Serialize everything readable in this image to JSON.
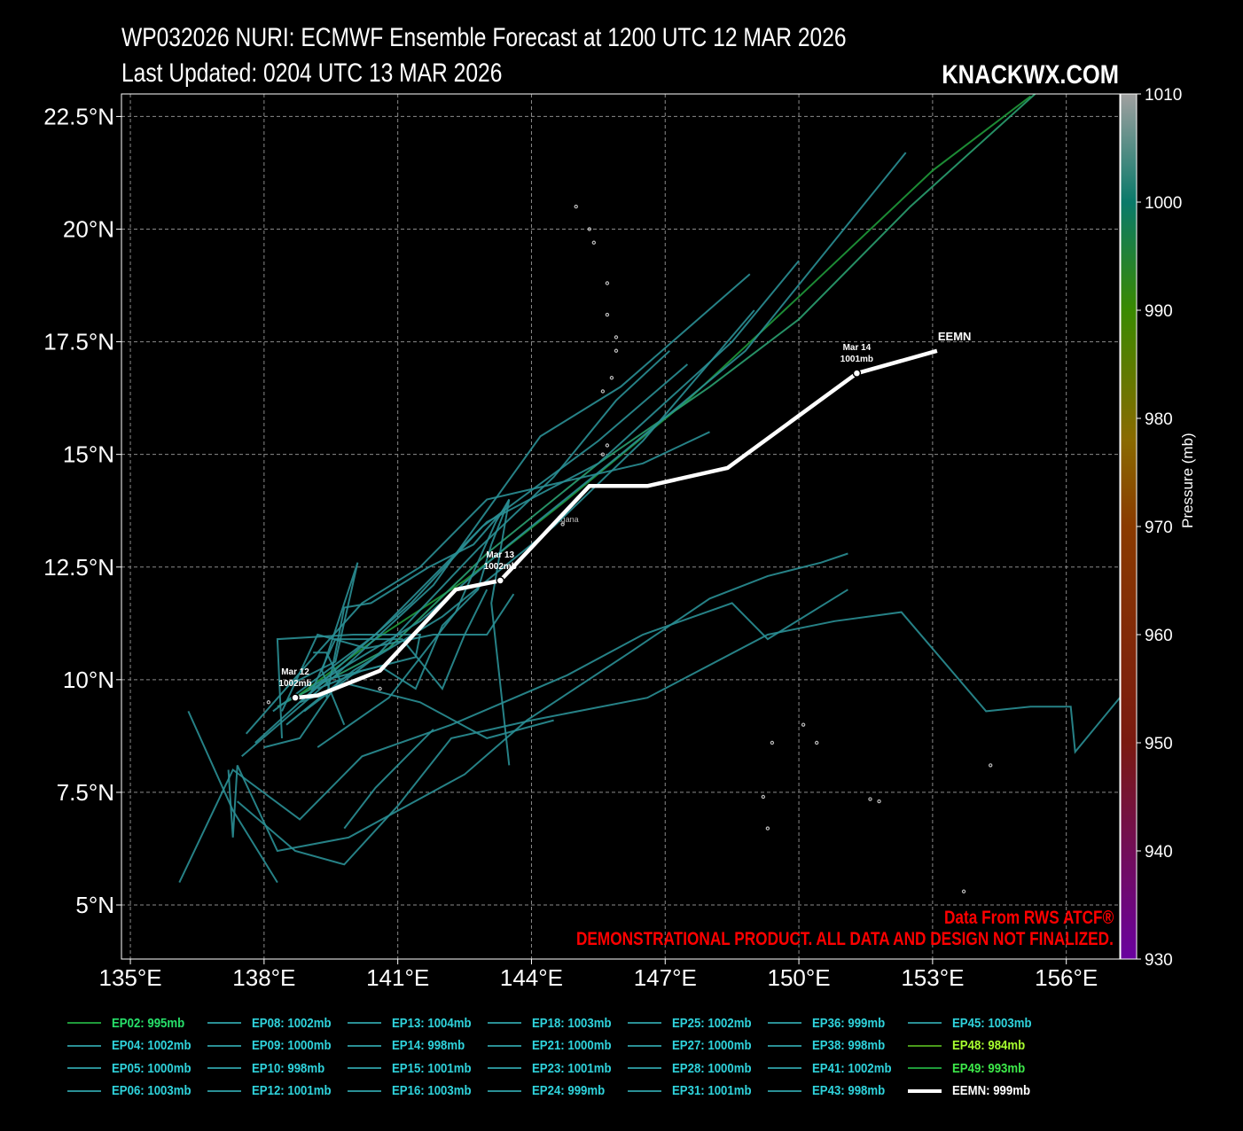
{
  "header": {
    "title_line1": "WP032026 NURI: ECMWF Ensemble Forecast at 1200 UTC 12 MAR 2026",
    "title_line2": "Last Updated: 0204 UTC 13 MAR 2026",
    "brand": "KNACKWX.COM"
  },
  "notes": {
    "source": "Data From RWS ATCF®",
    "disclaimer": "DEMONSTRATIONAL PRODUCT. ALL DATA AND DESIGN NOT FINALIZED."
  },
  "colorbar": {
    "label": "Pressure (mb)",
    "ticks": [
      "1010",
      "1000",
      "990",
      "980",
      "970",
      "960",
      "950",
      "940",
      "930"
    ],
    "range": [
      930,
      1010
    ]
  },
  "chart_data": {
    "type": "line",
    "title": "WP032026 NURI: ECMWF Ensemble Forecast at 1200 UTC 12 MAR 2026",
    "x_axis": {
      "label": "",
      "range": [
        134.8,
        157.2
      ],
      "ticks": [
        "135°E",
        "138°E",
        "141°E",
        "144°E",
        "147°E",
        "150°E",
        "153°E",
        "156°E"
      ],
      "tick_values": [
        135,
        138,
        141,
        144,
        147,
        150,
        153,
        156
      ]
    },
    "y_axis": {
      "label": "",
      "range": [
        3.8,
        23.0
      ],
      "ticks": [
        "5°N",
        "7.5°N",
        "10°N",
        "12.5°N",
        "15°N",
        "17.5°N",
        "20°N",
        "22.5°N"
      ],
      "tick_values": [
        5,
        7.5,
        10,
        12.5,
        15,
        17.5,
        20,
        22.5
      ]
    },
    "grid": true,
    "mean_track": {
      "name": "EEMN",
      "points": [
        [
          138.7,
          9.6
        ],
        [
          139.2,
          9.65
        ],
        [
          140.6,
          10.2
        ],
        [
          142.3,
          12.0
        ],
        [
          143.3,
          12.2
        ],
        [
          145.3,
          14.3
        ],
        [
          146.6,
          14.3
        ],
        [
          148.4,
          14.7
        ],
        [
          151.3,
          16.8
        ],
        [
          153.1,
          17.3
        ]
      ],
      "markers": [
        {
          "point": [
            138.7,
            9.6
          ],
          "date": "Mar 12",
          "pressure": "1002mb"
        },
        {
          "point": [
            143.3,
            12.2
          ],
          "date": "Mar 13",
          "pressure": "1002mb"
        },
        {
          "point": [
            151.3,
            16.8
          ],
          "date": "Mar 14",
          "pressure": "1001mb"
        }
      ]
    },
    "members": [
      {
        "points": [
          [
            138.7,
            9.6
          ],
          [
            140.5,
            10.9
          ],
          [
            142.5,
            12.2
          ],
          [
            144.8,
            14.0
          ],
          [
            147.5,
            16.2
          ],
          [
            150.0,
            18.5
          ],
          [
            153.0,
            21.3
          ],
          [
            155.2,
            22.95
          ]
        ],
        "color": "#1f9a3a"
      },
      {
        "points": [
          [
            138.3,
            9.4
          ],
          [
            140.8,
            10.7
          ],
          [
            143.0,
            12.8
          ],
          [
            145.5,
            14.8
          ],
          [
            148.0,
            16.5
          ],
          [
            150.0,
            18.0
          ],
          [
            152.5,
            20.5
          ],
          [
            155.3,
            23.0
          ]
        ],
        "color": "#2aa070"
      },
      {
        "points": [
          [
            139.0,
            9.8
          ],
          [
            141.5,
            11.3
          ],
          [
            143.5,
            13.0
          ],
          [
            146.0,
            15.0
          ],
          [
            148.8,
            17.3
          ],
          [
            152.4,
            21.7
          ]
        ],
        "color": "#2a8f95"
      },
      {
        "points": [
          [
            137.5,
            8.3
          ],
          [
            139.5,
            10.0
          ],
          [
            141.8,
            12.1
          ],
          [
            144.2,
            15.4
          ],
          [
            146.0,
            16.5
          ],
          [
            148.9,
            19.0
          ]
        ],
        "color": "#2a8f95"
      },
      {
        "points": [
          [
            138.2,
            9.3
          ],
          [
            140.5,
            11.0
          ],
          [
            143.0,
            13.5
          ],
          [
            145.5,
            14.8
          ],
          [
            148.5,
            17.5
          ],
          [
            150.0,
            19.3
          ]
        ],
        "color": "#2a8f95"
      },
      {
        "points": [
          [
            137.8,
            8.6
          ],
          [
            139.8,
            10.4
          ],
          [
            141.3,
            11.7
          ],
          [
            142.9,
            13.4
          ],
          [
            145.5,
            15.3
          ],
          [
            147.5,
            17.0
          ]
        ],
        "color": "#2a8f95"
      },
      {
        "points": [
          [
            137.6,
            8.8
          ],
          [
            139.2,
            10.6
          ],
          [
            140.2,
            11.7
          ],
          [
            141.5,
            12.5
          ],
          [
            143.0,
            14.0
          ],
          [
            146.5,
            14.8
          ],
          [
            148.0,
            15.5
          ]
        ],
        "color": "#2a8f95"
      },
      {
        "points": [
          [
            138.5,
            9.0
          ],
          [
            140.0,
            10.2
          ],
          [
            142.0,
            11.4
          ],
          [
            144.5,
            13.4
          ],
          [
            146.5,
            15.3
          ],
          [
            149.0,
            18.2
          ]
        ],
        "color": "#2a8f95"
      },
      {
        "points": [
          [
            138.9,
            9.3
          ],
          [
            140.5,
            10.5
          ],
          [
            142.8,
            12.9
          ],
          [
            144.5,
            14.5
          ],
          [
            145.9,
            16.2
          ],
          [
            147.1,
            17.3
          ]
        ],
        "color": "#2a8f95"
      },
      {
        "points": [
          [
            139.2,
            8.5
          ],
          [
            140.8,
            9.6
          ],
          [
            142.3,
            11.5
          ],
          [
            143.2,
            13.5
          ],
          [
            143.5,
            14.0
          ],
          [
            143.1,
            11.7
          ],
          [
            143.5,
            8.1
          ]
        ],
        "color": "#2a8f95"
      },
      {
        "points": [
          [
            138.6,
            9.9
          ],
          [
            139.6,
            10.4
          ],
          [
            140.1,
            12.6
          ],
          [
            139.3,
            10.2
          ],
          [
            139.8,
            9.0
          ]
        ],
        "color": "#2a8f95"
      },
      {
        "points": [
          [
            139.2,
            9.8
          ],
          [
            140.2,
            10.2
          ],
          [
            141.4,
            10.5
          ],
          [
            141.5,
            11.0
          ],
          [
            140.0,
            11.0
          ],
          [
            138.3,
            10.9
          ],
          [
            138.4,
            8.7
          ]
        ],
        "color": "#2a8f95"
      },
      {
        "points": [
          [
            139.4,
            9.6
          ],
          [
            139.8,
            11.6
          ],
          [
            140.4,
            11.7
          ],
          [
            141.7,
            12.5
          ],
          [
            142.7,
            13.0
          ],
          [
            143.4,
            13.8
          ]
        ],
        "color": "#2a8f95"
      },
      {
        "points": [
          [
            138.0,
            8.5
          ],
          [
            138.8,
            8.7
          ],
          [
            139.7,
            10.0
          ],
          [
            139.4,
            10.6
          ],
          [
            139.1,
            10.6
          ]
        ],
        "color": "#2a8f95"
      },
      {
        "points": [
          [
            138.8,
            9.5
          ],
          [
            139.4,
            10.0
          ],
          [
            140.6,
            10.3
          ],
          [
            141.4,
            9.8
          ],
          [
            142.0,
            11.2
          ],
          [
            142.8,
            12.0
          ],
          [
            143.1,
            13.0
          ],
          [
            143.5,
            14.0
          ]
        ],
        "color": "#2a8f95"
      },
      {
        "points": [
          [
            138.4,
            9.3
          ],
          [
            139.2,
            11.0
          ],
          [
            140.3,
            10.7
          ],
          [
            141.8,
            11.0
          ],
          [
            143.0,
            11.0
          ],
          [
            143.6,
            11.9
          ]
        ],
        "color": "#2a8f95"
      },
      {
        "points": [
          [
            139.0,
            9.6
          ],
          [
            139.6,
            10.9
          ],
          [
            141.1,
            10.9
          ],
          [
            142.0,
            9.8
          ],
          [
            142.5,
            11.0
          ],
          [
            143.0,
            12.0
          ]
        ],
        "color": "#2a8f95"
      },
      {
        "points": [
          [
            136.3,
            9.3
          ],
          [
            137.3,
            7.1
          ],
          [
            138.3,
            5.5
          ]
        ],
        "color": "#2a8f95"
      },
      {
        "points": [
          [
            137.2,
            8.0
          ],
          [
            137.3,
            6.5
          ],
          [
            137.4,
            8.1
          ],
          [
            138.3,
            6.2
          ],
          [
            139.9,
            6.5
          ],
          [
            142.5,
            7.9
          ],
          [
            143.9,
            9.1
          ],
          [
            146.2,
            10.6
          ],
          [
            148.0,
            11.8
          ],
          [
            149.3,
            12.3
          ],
          [
            150.5,
            12.6
          ],
          [
            151.1,
            12.8
          ]
        ],
        "color": "#2a8f95"
      },
      {
        "points": [
          [
            137.4,
            7.3
          ],
          [
            138.7,
            6.2
          ],
          [
            139.8,
            5.9
          ],
          [
            141.0,
            7.2
          ],
          [
            142.2,
            8.7
          ],
          [
            144.0,
            9.1
          ],
          [
            146.6,
            9.6
          ],
          [
            149.3,
            11.0
          ],
          [
            150.8,
            11.3
          ],
          [
            152.3,
            11.5
          ],
          [
            154.2,
            9.3
          ],
          [
            155.2,
            9.4
          ],
          [
            156.1,
            9.4
          ],
          [
            156.2,
            8.4
          ],
          [
            157.2,
            9.6
          ]
        ],
        "color": "#2a8f95"
      },
      {
        "points": [
          [
            136.1,
            5.5
          ],
          [
            137.3,
            8.0
          ],
          [
            138.8,
            6.9
          ],
          [
            140.2,
            8.3
          ],
          [
            142.2,
            9.0
          ],
          [
            144.8,
            10.1
          ],
          [
            146.5,
            11.0
          ],
          [
            148.5,
            11.7
          ],
          [
            149.3,
            10.9
          ],
          [
            151.1,
            12.0
          ]
        ],
        "color": "#2a8f95"
      },
      {
        "points": [
          [
            139.8,
            6.7
          ],
          [
            140.5,
            7.6
          ],
          [
            141.8,
            8.9
          ]
        ],
        "color": "#2a8f95"
      },
      {
        "points": [
          [
            138.8,
            9.5
          ],
          [
            139.9,
            9.9
          ],
          [
            141.5,
            9.5
          ],
          [
            143.0,
            8.7
          ],
          [
            144.5,
            9.1
          ]
        ],
        "color": "#2a8f95"
      }
    ],
    "islands": [
      [
        144.7,
        13.45
      ],
      [
        145.7,
        15.2
      ],
      [
        145.6,
        15.0
      ],
      [
        145.6,
        16.4
      ],
      [
        145.8,
        16.7
      ],
      [
        145.9,
        17.6
      ],
      [
        145.9,
        17.3
      ],
      [
        145.7,
        18.1
      ],
      [
        145.7,
        18.8
      ],
      [
        145.4,
        19.7
      ],
      [
        145.3,
        20.0
      ],
      [
        145.0,
        20.5
      ],
      [
        138.1,
        9.5
      ],
      [
        140.6,
        9.8
      ],
      [
        149.4,
        8.6
      ],
      [
        150.1,
        9.0
      ],
      [
        150.4,
        8.6
      ],
      [
        151.6,
        7.35
      ],
      [
        151.8,
        7.3
      ],
      [
        149.2,
        7.4
      ],
      [
        149.3,
        6.7
      ],
      [
        153.7,
        5.3
      ],
      [
        154.3,
        8.1
      ]
    ],
    "island_label": {
      "text": "Agana",
      "point": [
        144.8,
        13.5
      ]
    }
  },
  "legend": {
    "items": [
      {
        "label": "EP02: 995mb",
        "color": "#1f9a3a",
        "text_color": "#27e06a"
      },
      {
        "label": "EP04: 1002mb",
        "color": "#2a8f95",
        "text_color": "#2fd3dc"
      },
      {
        "label": "EP05: 1000mb",
        "color": "#2a8f95",
        "text_color": "#2fd3dc"
      },
      {
        "label": "EP06: 1003mb",
        "color": "#2a8f95",
        "text_color": "#2fd3dc"
      },
      {
        "label": "EP08: 1002mb",
        "color": "#2a8f95",
        "text_color": "#2fd3dc"
      },
      {
        "label": "EP09: 1000mb",
        "color": "#2a8f95",
        "text_color": "#2fd3dc"
      },
      {
        "label": "EP10: 998mb",
        "color": "#2a8f95",
        "text_color": "#2fd3dc"
      },
      {
        "label": "EP12: 1001mb",
        "color": "#2a8f95",
        "text_color": "#2fd3dc"
      },
      {
        "label": "EP13: 1004mb",
        "color": "#2a8f95",
        "text_color": "#2fd3dc"
      },
      {
        "label": "EP14: 998mb",
        "color": "#2a8f95",
        "text_color": "#2fd3dc"
      },
      {
        "label": "EP15: 1001mb",
        "color": "#2a8f95",
        "text_color": "#2fd3dc"
      },
      {
        "label": "EP16: 1003mb",
        "color": "#2a8f95",
        "text_color": "#2fd3dc"
      },
      {
        "label": "EP18: 1003mb",
        "color": "#2a8f95",
        "text_color": "#2fd3dc"
      },
      {
        "label": "EP21: 1000mb",
        "color": "#2a8f95",
        "text_color": "#2fd3dc"
      },
      {
        "label": "EP23: 1001mb",
        "color": "#2a8f95",
        "text_color": "#2fd3dc"
      },
      {
        "label": "EP24: 999mb",
        "color": "#2a8f95",
        "text_color": "#2fd3dc"
      },
      {
        "label": "EP25: 1002mb",
        "color": "#2a8f95",
        "text_color": "#2fd3dc"
      },
      {
        "label": "EP27: 1000mb",
        "color": "#2a8f95",
        "text_color": "#2fd3dc"
      },
      {
        "label": "EP28: 1000mb",
        "color": "#2a8f95",
        "text_color": "#2fd3dc"
      },
      {
        "label": "EP31: 1001mb",
        "color": "#2a8f95",
        "text_color": "#2fd3dc"
      },
      {
        "label": "EP36: 999mb",
        "color": "#2a8f95",
        "text_color": "#2fd3dc"
      },
      {
        "label": "EP38: 998mb",
        "color": "#2a8f95",
        "text_color": "#2fd3dc"
      },
      {
        "label": "EP41: 1002mb",
        "color": "#2a8f95",
        "text_color": "#2fd3dc"
      },
      {
        "label": "EP43: 998mb",
        "color": "#2a8f95",
        "text_color": "#2fd3dc"
      },
      {
        "label": "EP45: 1003mb",
        "color": "#2a8f95",
        "text_color": "#2fd3dc"
      },
      {
        "label": "EP48: 984mb",
        "color": "#4a9a1a",
        "text_color": "#a8ff30"
      },
      {
        "label": "EP49: 993mb",
        "color": "#1f9a3a",
        "text_color": "#3de84a"
      },
      {
        "label": "EEMN: 999mb",
        "color": "#ffffff",
        "text_color": "#ffffff"
      }
    ]
  }
}
